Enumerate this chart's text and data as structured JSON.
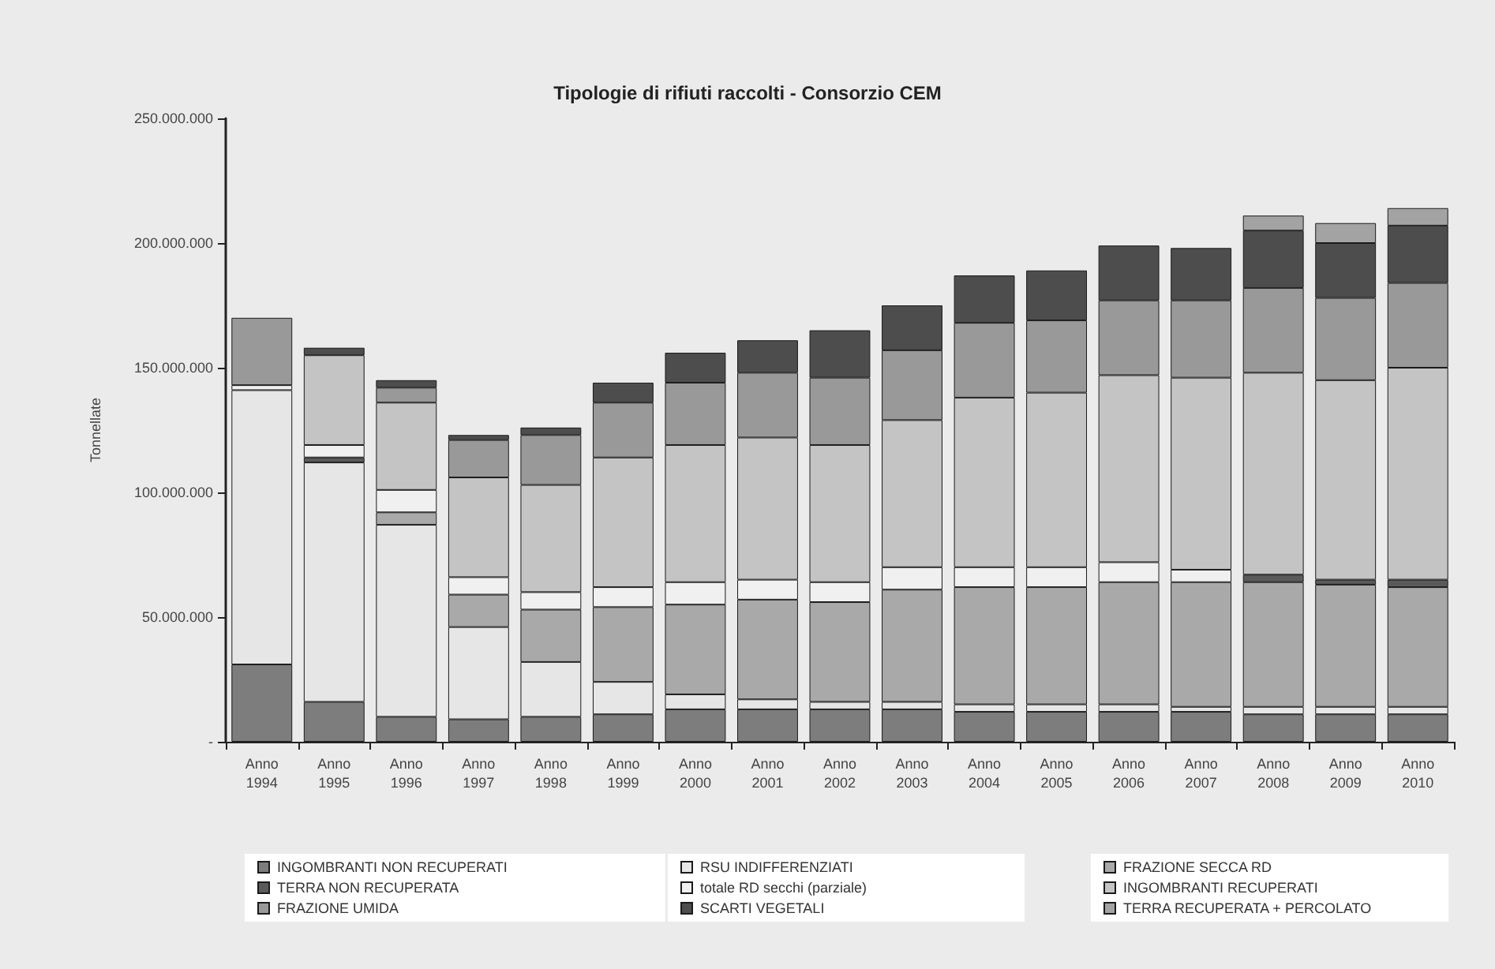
{
  "chart_data": {
    "type": "bar",
    "title": "Tipologie di rifiuti raccolti - Consorzio CEM",
    "ylabel": "Tonnellate",
    "stacked": true,
    "grid": false,
    "legend": "bottom",
    "categories": [
      "Anno 1994",
      "Anno 1995",
      "Anno 1996",
      "Anno 1997",
      "Anno 1998",
      "Anno 1999",
      "Anno 2000",
      "Anno 2001",
      "Anno 2002",
      "Anno 2003",
      "Anno 2004",
      "Anno 2005",
      "Anno 2006",
      "Anno 2007",
      "Anno 2008",
      "Anno 2009",
      "Anno 2010"
    ],
    "ylim": [
      0,
      250000000
    ],
    "yticks": [
      {
        "value": 0,
        "label": "-"
      },
      {
        "value": 50000000,
        "label": "50.000.000"
      },
      {
        "value": 100000000,
        "label": "100.000.000"
      },
      {
        "value": 150000000,
        "label": "150.000.000"
      },
      {
        "value": 200000000,
        "label": "200.000.000"
      },
      {
        "value": 250000000,
        "label": "250.000.000"
      }
    ],
    "series": [
      {
        "name": "INGOMBRANTI NON RECUPERATI",
        "color": "#7d7d7d",
        "values": [
          31000000,
          16000000,
          10000000,
          9000000,
          10000000,
          11000000,
          13000000,
          13000000,
          13000000,
          13000000,
          12000000,
          12000000,
          12000000,
          12000000,
          11000000,
          11000000,
          11000000
        ]
      },
      {
        "name": "RSU INDIFFERENZIATI",
        "color": "#e6e6e6",
        "values": [
          110000000,
          96000000,
          77000000,
          37000000,
          22000000,
          13000000,
          6000000,
          4000000,
          3000000,
          3000000,
          3000000,
          3000000,
          3000000,
          2000000,
          3000000,
          3000000,
          3000000
        ]
      },
      {
        "name": "FRAZIONE SECCA RD",
        "color": "#a9a9a9",
        "values": [
          0,
          0,
          5000000,
          13000000,
          21000000,
          30000000,
          36000000,
          40000000,
          40000000,
          45000000,
          47000000,
          47000000,
          49000000,
          50000000,
          50000000,
          49000000,
          48000000
        ]
      },
      {
        "name": "TERRA NON RECUPERATA",
        "color": "#5a5a5a",
        "values": [
          0,
          2000000,
          0,
          0,
          0,
          0,
          0,
          0,
          0,
          0,
          0,
          0,
          0,
          0,
          3000000,
          2000000,
          3000000
        ]
      },
      {
        "name": "totale RD secchi (parziale)",
        "color": "#f0f0f0",
        "values": [
          2000000,
          5000000,
          9000000,
          7000000,
          7000000,
          8000000,
          9000000,
          8000000,
          8000000,
          9000000,
          8000000,
          8000000,
          8000000,
          5000000,
          0,
          0,
          0
        ]
      },
      {
        "name": "INGOMBRANTI RECUPERATI",
        "color": "#c4c4c4",
        "values": [
          0,
          36000000,
          35000000,
          40000000,
          43000000,
          52000000,
          55000000,
          57000000,
          55000000,
          59000000,
          68000000,
          70000000,
          75000000,
          77000000,
          81000000,
          80000000,
          85000000
        ]
      },
      {
        "name": "FRAZIONE UMIDA",
        "color": "#999999",
        "values": [
          27000000,
          0,
          6000000,
          15000000,
          20000000,
          22000000,
          25000000,
          26000000,
          27000000,
          28000000,
          30000000,
          29000000,
          30000000,
          31000000,
          34000000,
          33000000,
          34000000
        ]
      },
      {
        "name": "SCARTI VEGETALI",
        "color": "#4d4d4d",
        "values": [
          0,
          3000000,
          3000000,
          2000000,
          3000000,
          8000000,
          12000000,
          13000000,
          19000000,
          18000000,
          19000000,
          20000000,
          22000000,
          21000000,
          23000000,
          22000000,
          23000000
        ]
      },
      {
        "name": "TERRA RECUPERATA + PERCOLATO",
        "color": "#a3a3a3",
        "values": [
          0,
          0,
          0,
          0,
          0,
          0,
          0,
          0,
          0,
          0,
          0,
          0,
          0,
          0,
          6000000,
          8000000,
          7000000
        ]
      }
    ]
  }
}
